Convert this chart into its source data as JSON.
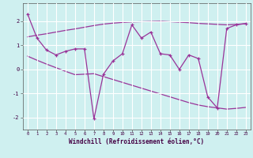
{
  "x": [
    0,
    1,
    2,
    3,
    4,
    5,
    6,
    7,
    8,
    9,
    10,
    11,
    12,
    13,
    14,
    15,
    16,
    17,
    18,
    19,
    20,
    21,
    22,
    23
  ],
  "y_main": [
    2.3,
    1.3,
    0.8,
    0.6,
    0.75,
    0.85,
    0.85,
    -2.05,
    -0.2,
    0.35,
    0.65,
    1.85,
    1.3,
    1.55,
    0.65,
    0.6,
    0.0,
    0.6,
    0.45,
    -1.15,
    -1.6,
    1.7,
    1.85,
    1.9
  ],
  "y_trend_upper": [
    1.35,
    1.42,
    1.48,
    1.55,
    1.62,
    1.68,
    1.75,
    1.82,
    1.88,
    1.92,
    1.95,
    1.97,
    1.98,
    1.99,
    2.0,
    1.98,
    1.96,
    1.94,
    1.91,
    1.89,
    1.87,
    1.85,
    1.87,
    1.9
  ],
  "y_trend_lower": [
    0.55,
    0.38,
    0.22,
    0.07,
    -0.08,
    -0.22,
    -0.2,
    -0.18,
    -0.3,
    -0.42,
    -0.54,
    -0.66,
    -0.78,
    -0.9,
    -1.02,
    -1.14,
    -1.26,
    -1.38,
    -1.48,
    -1.55,
    -1.6,
    -1.65,
    -1.62,
    -1.58
  ],
  "line_color": "#993399",
  "background_color": "#cff0f0",
  "grid_color": "#ffffff",
  "xlabel": "Windchill (Refroidissement éolien,°C)",
  "ylim": [
    -2.5,
    2.75
  ],
  "xlim": [
    -0.5,
    23.5
  ],
  "yticks": [
    -2,
    -1,
    0,
    1,
    2
  ],
  "xticks": [
    0,
    1,
    2,
    3,
    4,
    5,
    6,
    7,
    8,
    9,
    10,
    11,
    12,
    13,
    14,
    15,
    16,
    17,
    18,
    19,
    20,
    21,
    22,
    23
  ]
}
